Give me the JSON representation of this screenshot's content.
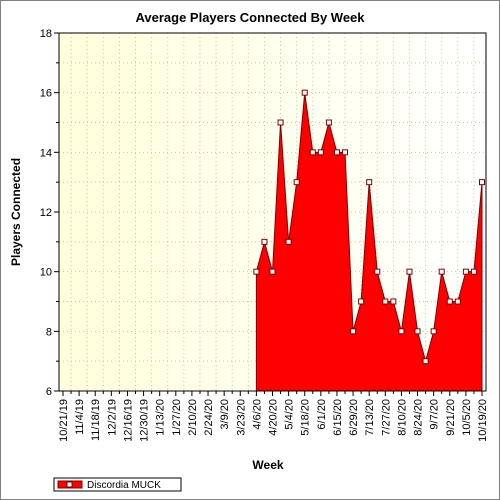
{
  "chart_data": {
    "type": "area",
    "title": "Average Players Connected By Week",
    "xlabel": "Week",
    "ylabel": "Players Connected",
    "ylim": [
      6,
      18
    ],
    "yticks": [
      6,
      8,
      10,
      12,
      14,
      16,
      18
    ],
    "grid": true,
    "legend_position": "bottom-left",
    "x_tick_labels": [
      "10/21/19",
      "11/4/19",
      "11/18/19",
      "12/2/19",
      "12/16/19",
      "12/30/19",
      "1/13/20",
      "1/27/20",
      "2/10/20",
      "2/24/20",
      "3/9/20",
      "3/23/20",
      "4/6/20",
      "4/20/20",
      "5/4/20",
      "5/18/20",
      "6/1/20",
      "6/15/20",
      "6/29/20",
      "7/13/20",
      "7/27/20",
      "8/10/20",
      "8/24/20",
      "9/7/20",
      "9/21/20",
      "10/5/20",
      "10/19/20"
    ],
    "series": [
      {
        "name": "Discordia MUCK",
        "color": "#ff0000",
        "x": [
          "4/6/20",
          "4/13/20",
          "4/20/20",
          "4/27/20",
          "5/4/20",
          "5/11/20",
          "5/18/20",
          "5/25/20",
          "6/1/20",
          "6/8/20",
          "6/15/20",
          "6/22/20",
          "6/29/20",
          "7/6/20",
          "7/13/20",
          "7/20/20",
          "7/27/20",
          "8/3/20",
          "8/10/20",
          "8/17/20",
          "8/24/20",
          "8/31/20",
          "9/7/20",
          "9/14/20",
          "9/21/20",
          "9/28/20",
          "10/5/20",
          "10/12/20",
          "10/19/20"
        ],
        "values": [
          10,
          11,
          10,
          15,
          11,
          13,
          16,
          14,
          14,
          15,
          14,
          14,
          8,
          9,
          13,
          10,
          9,
          9,
          8,
          10,
          8,
          7,
          8,
          10,
          9,
          9,
          10,
          10,
          13
        ]
      }
    ]
  }
}
